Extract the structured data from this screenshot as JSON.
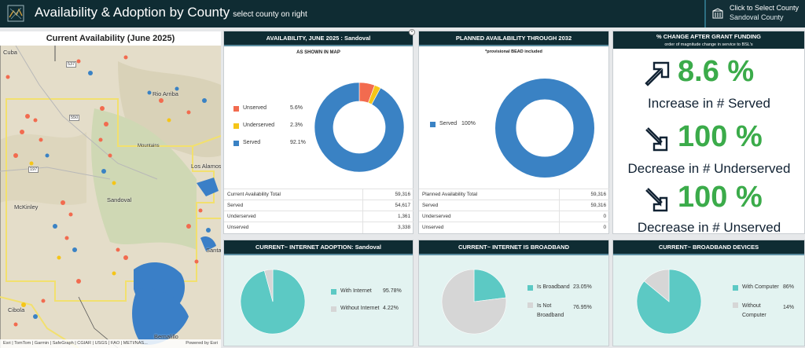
{
  "header": {
    "title": "Availability & Adoption by County",
    "subtitle": "select county on right",
    "selector_line1": "Click to Select County",
    "selector_line2": "Sandoval County"
  },
  "map": {
    "title": "Current Availability (June 2025)",
    "labels": [
      "Cuba",
      "Rio Arriba",
      "Los Alamos",
      "Sandoval",
      "McKinley",
      "Cibola",
      "Bernalillo",
      "Santa Fe",
      "Mountains"
    ],
    "roads": [
      "537",
      "550",
      "197"
    ],
    "attribution": "Esri | TomTom | Garmin | SafeGraph | CGIAR | USGS | FAO | METI/NAS...",
    "powered": "Powered by Esri"
  },
  "availability": {
    "header": "AVAILABILITY, JUNE 2025 : Sandoval",
    "note": "AS SHOWN IN MAP",
    "legend": [
      {
        "name": "Unserved",
        "pct": "5.6%",
        "color": "#f26b4f"
      },
      {
        "name": "Underserved",
        "pct": "2.3%",
        "color": "#f5c518"
      },
      {
        "name": "Served",
        "pct": "92.1%",
        "color": "#3a82c4"
      }
    ],
    "table": [
      {
        "label": "Current Availability Total",
        "value": "59,316"
      },
      {
        "label": "Served",
        "value": "54,617"
      },
      {
        "label": "Underserved",
        "value": "1,361"
      },
      {
        "label": "Unserved",
        "value": "3,338"
      }
    ]
  },
  "planned": {
    "header": "PLANNED AVAILABILITY THROUGH 2032",
    "note": "*provisional BEAD included",
    "legend": [
      {
        "name": "Served",
        "pct": "100%",
        "color": "#3a82c4"
      }
    ],
    "table": [
      {
        "label": "Planned Availability Total",
        "value": "59,316"
      },
      {
        "label": "Served",
        "value": "59,316"
      },
      {
        "label": "Underserved",
        "value": "0"
      },
      {
        "label": "Unserved",
        "value": "0"
      }
    ]
  },
  "change": {
    "header": "% CHANGE AFTER GRANT FUNDING",
    "subheader": "order of magnitude change in service to BSL's",
    "rows": [
      {
        "pct": "8.6 %",
        "caption": "Increase in # Served",
        "direction": "up"
      },
      {
        "pct": "100 %",
        "caption": "Decrease in # Underserved",
        "direction": "down"
      },
      {
        "pct": "100 %",
        "caption": "Decrease in # Unserved",
        "direction": "down"
      }
    ]
  },
  "adoption": {
    "header": "CURRENT~ INTERNET ADOPTION: Sandoval",
    "legend": [
      {
        "name": "With Internet",
        "pct": "95.78%",
        "color": "#5cc9c4"
      },
      {
        "name": "Without Internet",
        "pct": "4.22%",
        "color": "#d6d6d6"
      }
    ]
  },
  "broadband": {
    "header": "CURRENT~ INTERNET IS BROADBAND",
    "legend": [
      {
        "name": "Is Broadband",
        "pct": "23.05%",
        "color": "#5cc9c4"
      },
      {
        "name": "Is Not Broadband",
        "pct": "76.95%",
        "color": "#d6d6d6"
      }
    ]
  },
  "devices": {
    "header": "CURRENT~ BROADBAND DEVICES",
    "legend": [
      {
        "name": "With Computer",
        "pct": "86%",
        "color": "#5cc9c4"
      },
      {
        "name": "Without Computer",
        "pct": "14%",
        "color": "#d6d6d6"
      }
    ]
  },
  "chart_data": [
    {
      "type": "pie",
      "title": "AVAILABILITY, JUNE 2025 : Sandoval",
      "categories": [
        "Unserved",
        "Underserved",
        "Served"
      ],
      "values": [
        5.6,
        2.3,
        92.1
      ]
    },
    {
      "type": "pie",
      "title": "PLANNED AVAILABILITY THROUGH 2032",
      "categories": [
        "Served"
      ],
      "values": [
        100
      ]
    },
    {
      "type": "pie",
      "title": "CURRENT~ INTERNET ADOPTION: Sandoval",
      "categories": [
        "With Internet",
        "Without Internet"
      ],
      "values": [
        95.78,
        4.22
      ]
    },
    {
      "type": "pie",
      "title": "CURRENT~ INTERNET IS BROADBAND",
      "categories": [
        "Is Broadband",
        "Is Not Broadband"
      ],
      "values": [
        23.05,
        76.95
      ]
    },
    {
      "type": "pie",
      "title": "CURRENT~ BROADBAND DEVICES",
      "categories": [
        "With Computer",
        "Without Computer"
      ],
      "values": [
        86,
        14
      ]
    }
  ]
}
